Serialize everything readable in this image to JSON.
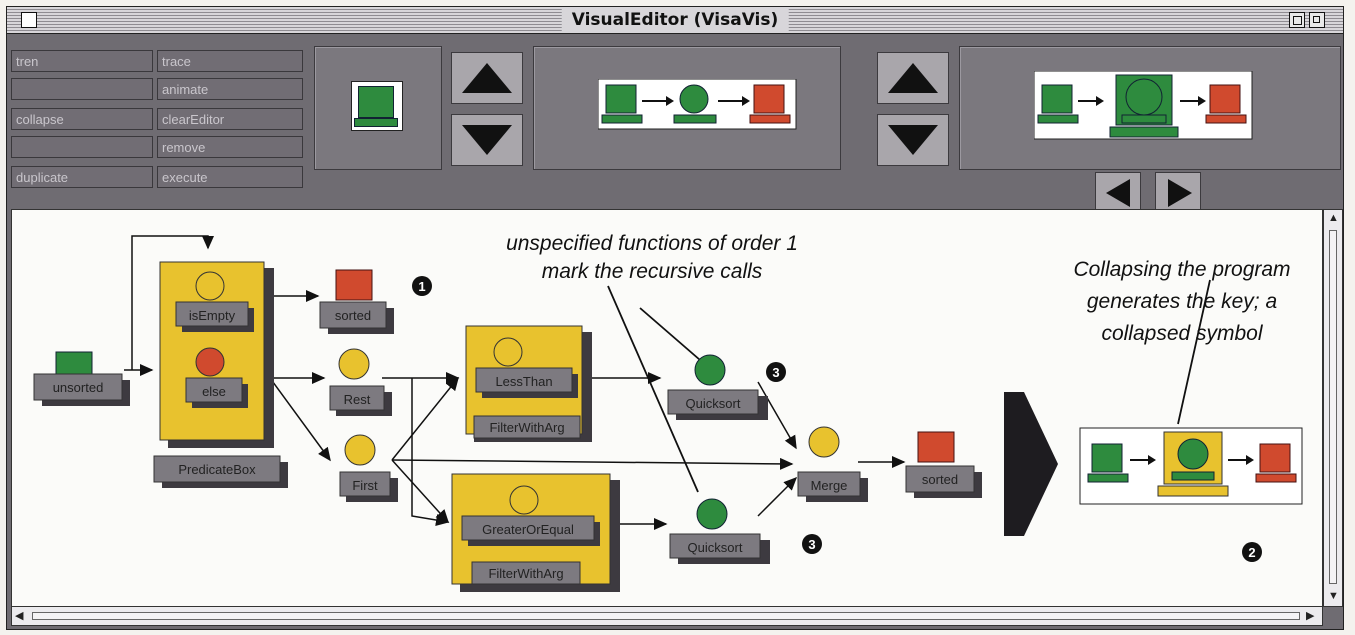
{
  "window": {
    "title": "VisualEditor (VisaVis)"
  },
  "commands": {
    "col1": [
      "tren",
      "",
      "collapse",
      "",
      "duplicate"
    ],
    "col2": [
      "trace",
      "animate",
      "clearEditor",
      "remove",
      "execute"
    ]
  },
  "nodes": {
    "unsorted": "unsorted",
    "is_empty": "isEmpty",
    "else": "else",
    "predicate_box": "PredicateBox",
    "sorted_top": "sorted",
    "rest": "Rest",
    "first": "First",
    "less_than": "LessThan",
    "filter_with_arg_1": "FilterWithArg",
    "greater_or_equal": "GreaterOrEqual",
    "filter_with_arg_2": "FilterWithArg",
    "quicksort_1": "Quicksort",
    "quicksort_2": "Quicksort",
    "merge": "Merge",
    "sorted_out": "sorted"
  },
  "annotations": {
    "recursive_line1": "unspecified functions of order 1",
    "recursive_line2": "mark the recursive calls",
    "collapse_line1": "Collapsing the program",
    "collapse_line2": "generates the key; a",
    "collapse_line3": "collapsed symbol"
  },
  "markers": {
    "one": "1",
    "two": "2",
    "three_a": "3",
    "three_b": "3"
  },
  "colors": {
    "green": "#2e8b3e",
    "red": "#d04a2e",
    "yellow": "#e8c22e",
    "gray_panel": "#7b787e",
    "chrome": "#6f6c72"
  }
}
